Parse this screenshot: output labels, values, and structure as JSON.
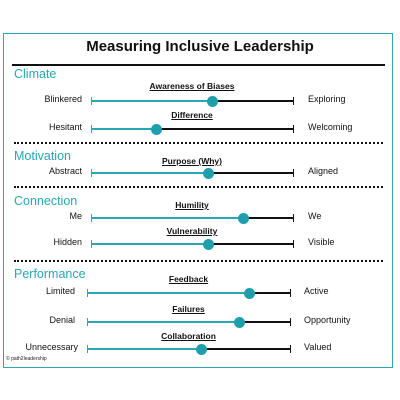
{
  "title": "Measuring Inclusive Leadership",
  "footer": "© path2leadership",
  "colors": {
    "accent": "#2aa6b4",
    "line": "#111111"
  },
  "sections": [
    {
      "name": "Climate"
    },
    {
      "name": "Motivation"
    },
    {
      "name": "Connection"
    },
    {
      "name": "Performance"
    }
  ],
  "scales": [
    {
      "label": "Awareness of Biases",
      "left": "Blinkered",
      "right": "Exploring",
      "value": 0.6
    },
    {
      "label": "Difference",
      "left": "Hesitant",
      "right": "Welcoming",
      "value": 0.32
    },
    {
      "label": "Purpose (Why)",
      "left": "Abstract",
      "right": "Aligned",
      "value": 0.58
    },
    {
      "label": "Humility",
      "left": "Me",
      "right": "We",
      "value": 0.75
    },
    {
      "label": "Vulnerability",
      "left": "Hidden",
      "right": "Visible",
      "value": 0.58
    },
    {
      "label": "Feedback",
      "left": "Limited",
      "right": "Active",
      "value": 0.8
    },
    {
      "label": "Failures",
      "left": "Denial",
      "right": "Opportunity",
      "value": 0.75
    },
    {
      "label": "Collaboration",
      "left": "Unnecessary",
      "right": "Valued",
      "value": 0.56
    }
  ]
}
